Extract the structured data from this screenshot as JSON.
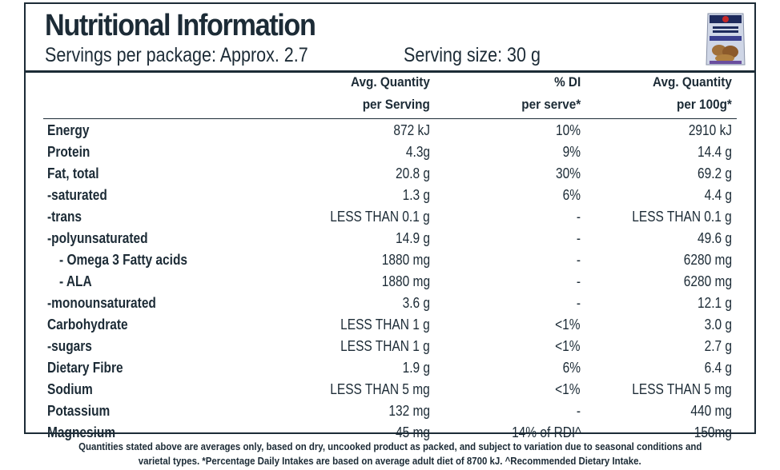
{
  "title": "Nutritional Information",
  "servings_per_package": "Servings per package: Approx. 2.7",
  "serving_size": "Serving size: 30 g",
  "product_image": "walnut-package-icon",
  "headers": {
    "col1_line1": "Avg. Quantity",
    "col1_line2": "per Serving",
    "col2_line1": "% DI",
    "col2_line2": "per serve*",
    "col3_line1": "Avg. Quantity",
    "col3_line2": "per 100g*"
  },
  "rows": [
    {
      "label": "Energy",
      "per_serving": "872 kJ",
      "di": "10%",
      "per_100g": "2910 kJ"
    },
    {
      "label": "Protein",
      "per_serving": "4.3g",
      "di": "9%",
      "per_100g": "14.4 g"
    },
    {
      "label": "Fat, total",
      "per_serving": "20.8 g",
      "di": "30%",
      "per_100g": "69.2 g"
    },
    {
      "label": "-saturated",
      "per_serving": "1.3 g",
      "di": "6%",
      "per_100g": "4.4 g"
    },
    {
      "label": "-trans",
      "per_serving": "LESS THAN 0.1 g",
      "di": "-",
      "per_100g": "LESS THAN 0.1 g"
    },
    {
      "label": "-polyunsaturated",
      "per_serving": "14.9 g",
      "di": "-",
      "per_100g": "49.6 g"
    },
    {
      "label": "- Omega 3 Fatty acids",
      "per_serving": "1880 mg",
      "di": "-",
      "per_100g": "6280 mg"
    },
    {
      "label": "- ALA",
      "per_serving": "1880 mg",
      "di": "-",
      "per_100g": "6280 mg"
    },
    {
      "label": "-monounsaturated",
      "per_serving": "3.6 g",
      "di": "-",
      "per_100g": "12.1 g"
    },
    {
      "label": "Carbohydrate",
      "per_serving": "LESS THAN 1 g",
      "di": "<1%",
      "per_100g": "3.0 g"
    },
    {
      "label": "-sugars",
      "per_serving": "LESS THAN 1 g",
      "di": "<1%",
      "per_100g": "2.7 g"
    },
    {
      "label": "Dietary Fibre",
      "per_serving": "1.9 g",
      "di": "6%",
      "per_100g": "6.4 g"
    },
    {
      "label": "Sodium",
      "per_serving": "LESS THAN 5 mg",
      "di": "<1%",
      "per_100g": "LESS THAN 5 mg"
    },
    {
      "label": "Potassium",
      "per_serving": "132 mg",
      "di": "-",
      "per_100g": "440 mg"
    },
    {
      "label": "Magnesium",
      "per_serving": "45 mg",
      "di": "14% of RDI^",
      "per_100g": "150mg"
    }
  ],
  "footnote_line1": "Quantities stated above are averages only, based on dry, uncooked product as packed, and subject to variation due to seasonal conditions and",
  "footnote_line2": "varietal types. *Percentage Daily Intakes are based on average adult diet of 8700 kJ. ^Recommended Dietary Intake."
}
